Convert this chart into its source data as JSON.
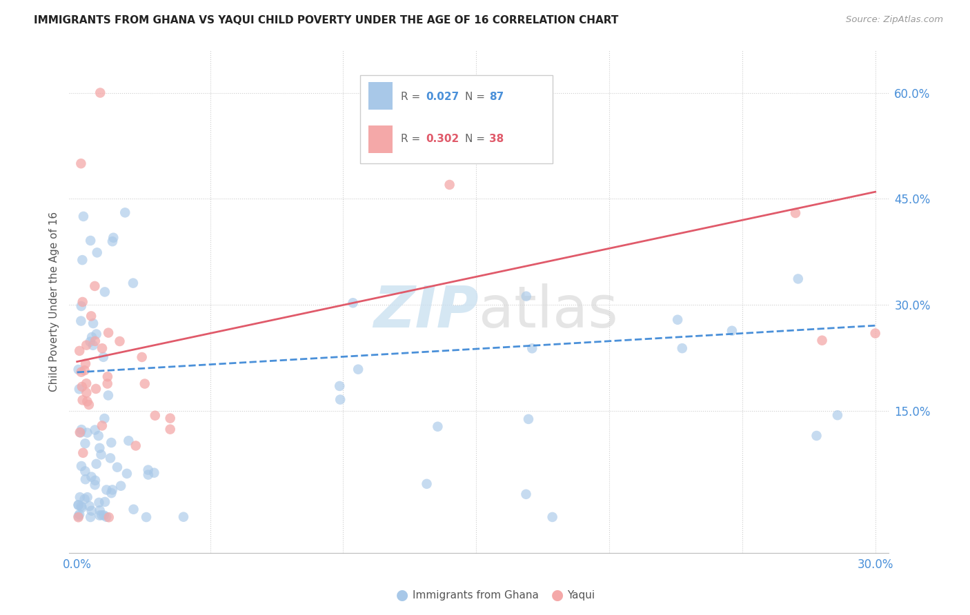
{
  "title": "IMMIGRANTS FROM GHANA VS YAQUI CHILD POVERTY UNDER THE AGE OF 16 CORRELATION CHART",
  "source": "Source: ZipAtlas.com",
  "ylabel": "Child Poverty Under the Age of 16",
  "blue_color": "#a8c8e8",
  "pink_color": "#f4a8a8",
  "blue_line_color": "#4a90d9",
  "pink_line_color": "#e05a6a",
  "watermark_zip": "ZIP",
  "watermark_atlas": "atlas",
  "legend_r1": "R = 0.027",
  "legend_n1": "N = 87",
  "legend_r2": "R = 0.302",
  "legend_n2": "N = 38"
}
